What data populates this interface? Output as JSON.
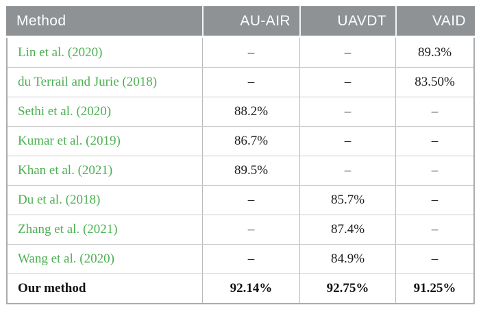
{
  "table": {
    "columns": [
      {
        "label": "Method"
      },
      {
        "label": "AU-AIR"
      },
      {
        "label": "UAVDT"
      },
      {
        "label": "VAID"
      }
    ],
    "rows": [
      {
        "method": "Lin et al. (2020)",
        "v0": "–",
        "v1": "–",
        "v2": "89.3%"
      },
      {
        "method": "du Terrail and Jurie (2018)",
        "v0": "–",
        "v1": "–",
        "v2": "83.50%"
      },
      {
        "method": "Sethi et al. (2020)",
        "v0": "88.2%",
        "v1": "–",
        "v2": "–"
      },
      {
        "method": "Kumar et al. (2019)",
        "v0": "86.7%",
        "v1": "–",
        "v2": "–"
      },
      {
        "method": "Khan et al. (2021)",
        "v0": "89.5%",
        "v1": "–",
        "v2": "–"
      },
      {
        "method": "Du et al. (2018)",
        "v0": "–",
        "v1": "85.7%",
        "v2": "–"
      },
      {
        "method": "Zhang et al. (2021)",
        "v0": "–",
        "v1": "87.4%",
        "v2": "–"
      },
      {
        "method": "Wang et al. (2020)",
        "v0": "–",
        "v1": "84.9%",
        "v2": "–"
      },
      {
        "method": "Our method",
        "v0": "92.14%",
        "v1": "92.75%",
        "v2": "91.25%"
      }
    ],
    "colors": {
      "header_bg": "#8e9294",
      "header_text": "#ffffff",
      "citation_green": "#4bb051",
      "value_text": "#1c1c1c",
      "outer_border": "#a9abac",
      "row_divider": "#cbcbcb",
      "column_divider": "#b9babb"
    }
  }
}
